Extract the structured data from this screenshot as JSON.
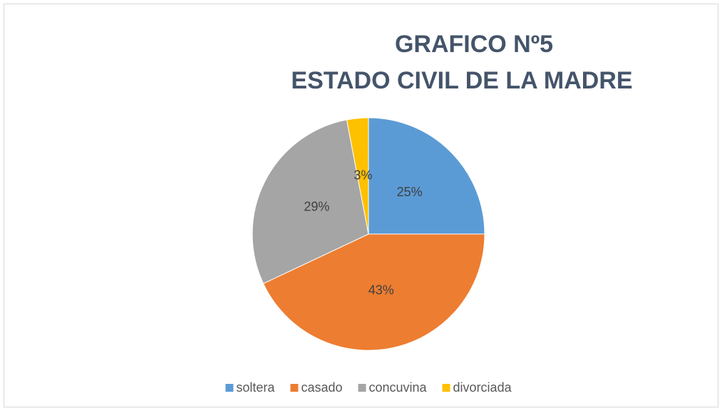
{
  "chart_data": {
    "type": "pie",
    "title": [
      "GRAFICO Nº5",
      "ESTADO CIVIL DE LA MADRE"
    ],
    "categories": [
      "soltera",
      "casado",
      "concuvina",
      "divorciada"
    ],
    "values": [
      25,
      43,
      29,
      3
    ],
    "value_labels": [
      "25%",
      "43%",
      "29%",
      "3%"
    ],
    "colors": [
      "#5b9bd5",
      "#ed7d31",
      "#a5a5a5",
      "#ffc000"
    ],
    "legend": "bottom"
  }
}
